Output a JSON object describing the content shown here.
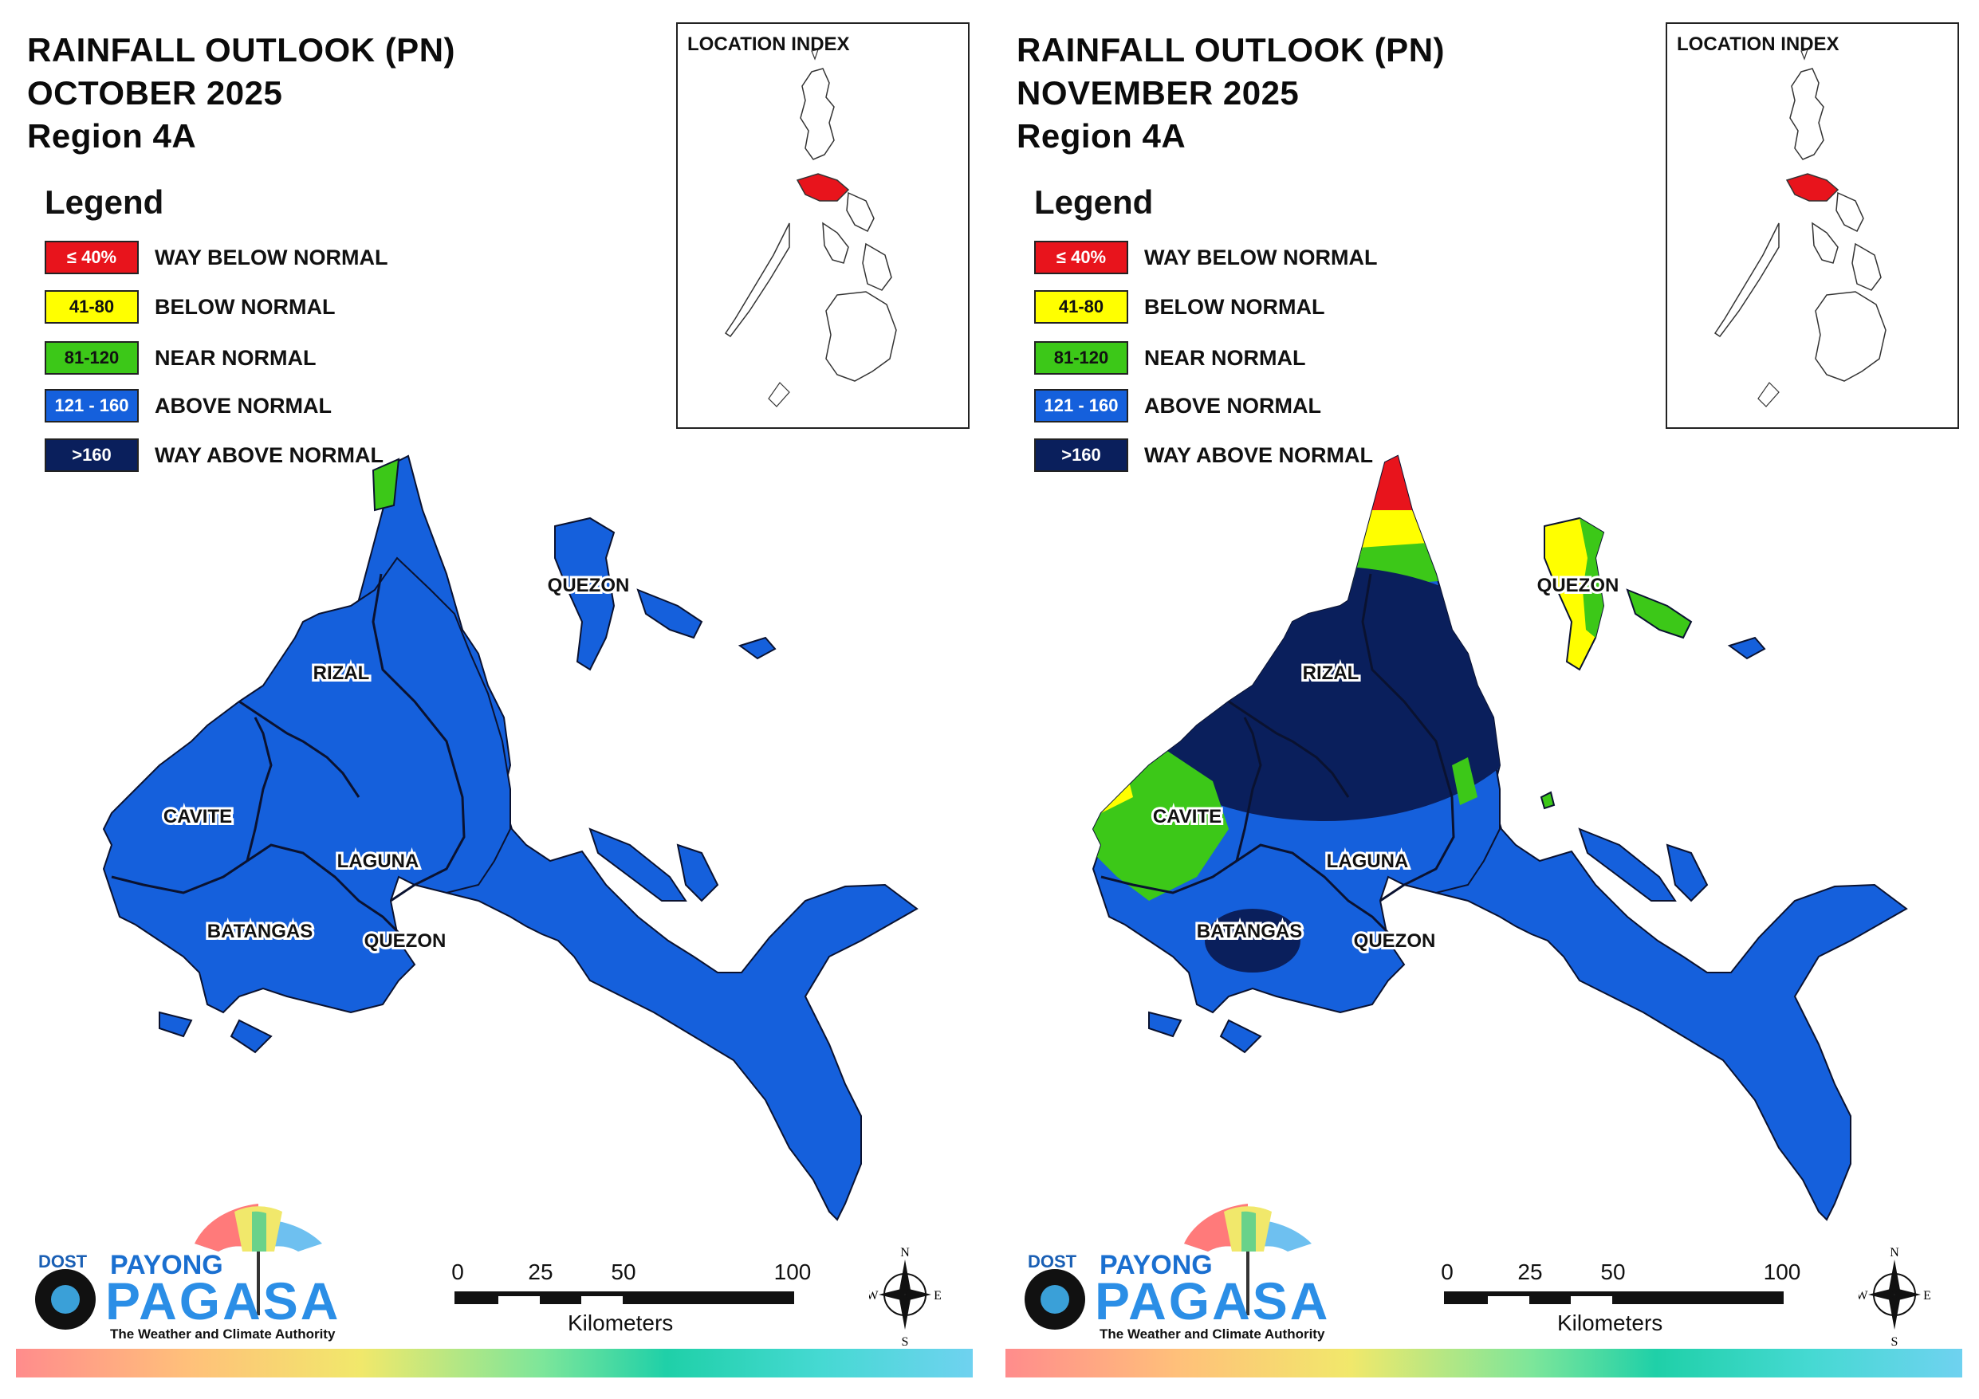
{
  "panels": [
    {
      "title_line1": "RAINFALL OUTLOOK (PN)",
      "title_line2": "OCTOBER 2025",
      "title_line3": "Region 4A",
      "legend_title": "Legend",
      "location_index_title": "LOCATION INDEX",
      "provinces": {
        "quezon_north": "QUEZON",
        "rizal": "RIZAL",
        "cavite": "CAVITE",
        "laguna": "LAGUNA",
        "batangas": "BATANGAS",
        "quezon_south": "QUEZON"
      },
      "categories_present": [
        "ABOVE NORMAL",
        "NEAR NORMAL"
      ]
    },
    {
      "title_line1": "RAINFALL OUTLOOK (PN)",
      "title_line2": "NOVEMBER 2025",
      "title_line3": "Region 4A",
      "legend_title": "Legend",
      "location_index_title": "LOCATION INDEX",
      "provinces": {
        "quezon_north": "QUEZON",
        "rizal": "RIZAL",
        "cavite": "CAVITE",
        "laguna": "LAGUNA",
        "batangas": "BATANGAS",
        "quezon_south": "QUEZON"
      },
      "categories_present": [
        "WAY BELOW NORMAL",
        "BELOW NORMAL",
        "NEAR NORMAL",
        "ABOVE NORMAL",
        "WAY ABOVE NORMAL"
      ]
    }
  ],
  "legend": [
    {
      "range": "≤ 40%",
      "label": "WAY BELOW NORMAL",
      "color": "#e8141c",
      "text_color": "#ffffff"
    },
    {
      "range": "41-80",
      "label": "BELOW NORMAL",
      "color": "#ffff00",
      "text_color": "#111111"
    },
    {
      "range": "81-120",
      "label": "NEAR NORMAL",
      "color": "#3cc818",
      "text_color": "#111111"
    },
    {
      "range": "121 - 160",
      "label": "ABOVE NORMAL",
      "color": "#1560dc",
      "text_color": "#ffffff"
    },
    {
      "range": ">160",
      "label": "WAY ABOVE NORMAL",
      "color": "#0a1f5c",
      "text_color": "#ffffff"
    }
  ],
  "scale": {
    "ticks": [
      "0",
      "25",
      "50",
      "100"
    ],
    "unit": "Kilometers"
  },
  "compass": {
    "n": "N",
    "s": "S",
    "e": "E",
    "w": "W"
  },
  "logo": {
    "dost": "DOST",
    "payong": "PAYONG",
    "pagasa": "PAGASA",
    "tagline": "The Weather and Climate Authority"
  },
  "colors": {
    "way_below": "#e8141c",
    "below": "#ffff00",
    "near": "#3cc818",
    "above": "#1560dc",
    "way_above": "#0a1f5c"
  }
}
